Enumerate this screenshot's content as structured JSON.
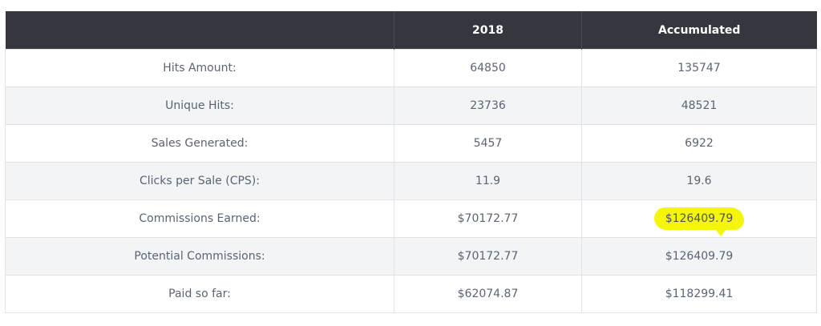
{
  "table": {
    "headers": [
      "",
      "2018",
      "Accumulated"
    ],
    "rows": [
      {
        "label": "Hits Amount:",
        "year": "64850",
        "accumulated": "135747"
      },
      {
        "label": "Unique Hits:",
        "year": "23736",
        "accumulated": "48521"
      },
      {
        "label": "Sales Generated:",
        "year": "5457",
        "accumulated": "6922"
      },
      {
        "label": "Clicks per Sale (CPS):",
        "year": "11.9",
        "accumulated": "19.6"
      },
      {
        "label": "Commissions Earned:",
        "year": "$70172.77",
        "accumulated": "$126409.79"
      },
      {
        "label": "Potential Commissions:",
        "year": "$70172.77",
        "accumulated": "$126409.79"
      },
      {
        "label": "Paid so far:",
        "year": "$62074.87",
        "accumulated": "$118299.41"
      }
    ]
  },
  "colors": {
    "header_bg": "#34373d",
    "highlight": "#f5f50a"
  }
}
